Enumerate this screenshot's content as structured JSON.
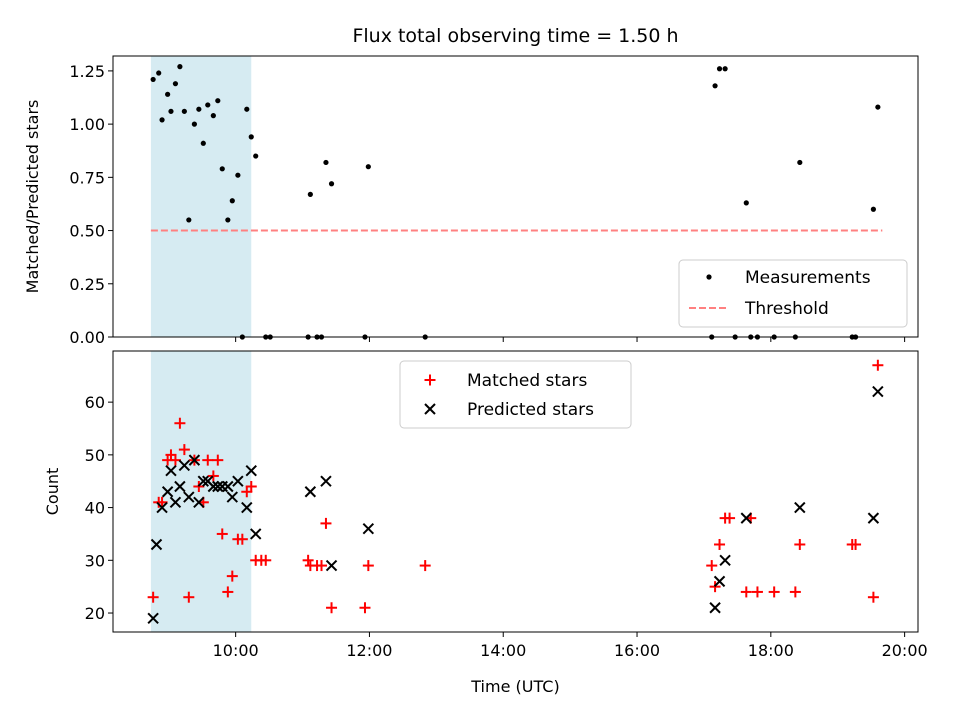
{
  "chart_data": [
    {
      "type": "scatter",
      "title": "Flux total observing time = 1.50 h",
      "xlabel": "",
      "ylabel": "Matched/Predicted stars",
      "ylim": [
        0,
        1.32
      ],
      "yticks": [
        "0.00",
        "0.25",
        "0.50",
        "0.75",
        "1.00",
        "1.25"
      ],
      "shaded_span": {
        "x": [
          "08:44",
          "10:14"
        ],
        "color": "#add8e6"
      },
      "threshold": {
        "name": "Threshold",
        "y": 0.5,
        "x": [
          "08:44",
          "19:40"
        ],
        "color": "#ff8080"
      },
      "series": [
        {
          "name": "Measurements",
          "color": "#000000",
          "points": [
            [
              "08:46",
              1.21
            ],
            [
              "08:51",
              1.24
            ],
            [
              "08:54",
              1.02
            ],
            [
              "08:59",
              1.14
            ],
            [
              "09:02",
              1.06
            ],
            [
              "09:06",
              1.19
            ],
            [
              "09:10",
              1.27
            ],
            [
              "09:14",
              1.06
            ],
            [
              "09:18",
              0.55
            ],
            [
              "09:23",
              1.0
            ],
            [
              "09:27",
              1.07
            ],
            [
              "09:31",
              0.91
            ],
            [
              "09:35",
              1.09
            ],
            [
              "09:40",
              1.04
            ],
            [
              "09:44",
              1.11
            ],
            [
              "09:48",
              0.79
            ],
            [
              "09:53",
              0.55
            ],
            [
              "09:57",
              0.64
            ],
            [
              "10:02",
              0.76
            ],
            [
              "10:06",
              0.0
            ],
            [
              "10:10",
              1.07
            ],
            [
              "10:14",
              0.94
            ],
            [
              "10:18",
              0.85
            ],
            [
              "10:27",
              0.0
            ],
            [
              "10:31",
              0.0
            ],
            [
              "11:05",
              0.0
            ],
            [
              "11:07",
              0.67
            ],
            [
              "11:13",
              0.0
            ],
            [
              "11:17",
              0.0
            ],
            [
              "11:21",
              0.82
            ],
            [
              "11:26",
              0.72
            ],
            [
              "11:56",
              0.0
            ],
            [
              "11:59",
              0.8
            ],
            [
              "12:50",
              0.0
            ],
            [
              "17:07",
              0.0
            ],
            [
              "17:10",
              1.18
            ],
            [
              "17:14",
              1.26
            ],
            [
              "17:19",
              1.26
            ],
            [
              "17:28",
              0.0
            ],
            [
              "17:38",
              0.63
            ],
            [
              "17:42",
              0.0
            ],
            [
              "17:48",
              0.0
            ],
            [
              "18:03",
              0.0
            ],
            [
              "18:22",
              0.0
            ],
            [
              "18:26",
              0.82
            ],
            [
              "19:13",
              0.0
            ],
            [
              "19:16",
              0.0
            ],
            [
              "19:32",
              0.6
            ],
            [
              "19:36",
              1.08
            ]
          ]
        }
      ],
      "legend": {
        "placement": "lower-right",
        "entries": [
          "Measurements",
          "Threshold"
        ]
      }
    },
    {
      "type": "scatter",
      "xlabel": "Time (UTC)",
      "ylabel": "Count",
      "ylim": [
        16.4,
        69.7
      ],
      "yticks": [
        "20",
        "30",
        "40",
        "50",
        "60"
      ],
      "xlim": [
        "08:10",
        "20:12"
      ],
      "xticks": [
        "10:00",
        "12:00",
        "14:00",
        "16:00",
        "18:00",
        "20:00"
      ],
      "shaded_span": {
        "x": [
          "08:44",
          "10:14"
        ],
        "color": "#add8e6"
      },
      "series": [
        {
          "name": "Matched stars",
          "marker": "+",
          "color": "#ff0000",
          "points": [
            [
              "08:46",
              23
            ],
            [
              "08:51",
              41
            ],
            [
              "08:54",
              41
            ],
            [
              "08:59",
              49
            ],
            [
              "09:02",
              50
            ],
            [
              "09:06",
              49
            ],
            [
              "09:10",
              56
            ],
            [
              "09:14",
              51
            ],
            [
              "09:18",
              23
            ],
            [
              "09:23",
              49
            ],
            [
              "09:27",
              44
            ],
            [
              "09:31",
              41
            ],
            [
              "09:35",
              49
            ],
            [
              "09:40",
              46
            ],
            [
              "09:44",
              49
            ],
            [
              "09:48",
              35
            ],
            [
              "09:53",
              24
            ],
            [
              "09:57",
              27
            ],
            [
              "10:02",
              34
            ],
            [
              "10:06",
              34
            ],
            [
              "10:10",
              43
            ],
            [
              "10:14",
              44
            ],
            [
              "10:18",
              30
            ],
            [
              "10:23",
              30
            ],
            [
              "10:27",
              30
            ],
            [
              "11:05",
              30
            ],
            [
              "11:07",
              29
            ],
            [
              "11:13",
              29
            ],
            [
              "11:17",
              29
            ],
            [
              "11:21",
              37
            ],
            [
              "11:26",
              21
            ],
            [
              "11:56",
              21
            ],
            [
              "11:59",
              29
            ],
            [
              "12:50",
              29
            ],
            [
              "17:07",
              29
            ],
            [
              "17:10",
              25
            ],
            [
              "17:14",
              33
            ],
            [
              "17:19",
              38
            ],
            [
              "17:23",
              38
            ],
            [
              "17:38",
              24
            ],
            [
              "17:42",
              38
            ],
            [
              "17:48",
              24
            ],
            [
              "18:03",
              24
            ],
            [
              "18:22",
              24
            ],
            [
              "18:26",
              33
            ],
            [
              "19:13",
              33
            ],
            [
              "19:16",
              33
            ],
            [
              "19:32",
              23
            ],
            [
              "19:36",
              67
            ]
          ]
        },
        {
          "name": "Predicted stars",
          "marker": "x",
          "color": "#000000",
          "points": [
            [
              "08:46",
              19
            ],
            [
              "08:49",
              33
            ],
            [
              "08:54",
              40
            ],
            [
              "08:59",
              43
            ],
            [
              "09:02",
              47
            ],
            [
              "09:06",
              41
            ],
            [
              "09:10",
              44
            ],
            [
              "09:14",
              48
            ],
            [
              "09:18",
              42
            ],
            [
              "09:23",
              49
            ],
            [
              "09:27",
              41
            ],
            [
              "09:31",
              45
            ],
            [
              "09:35",
              45
            ],
            [
              "09:40",
              44
            ],
            [
              "09:44",
              44
            ],
            [
              "09:48",
              44
            ],
            [
              "09:53",
              44
            ],
            [
              "09:57",
              42
            ],
            [
              "10:02",
              45
            ],
            [
              "10:10",
              40
            ],
            [
              "10:14",
              47
            ],
            [
              "10:18",
              35
            ],
            [
              "11:07",
              43
            ],
            [
              "11:21",
              45
            ],
            [
              "11:26",
              29
            ],
            [
              "11:59",
              36
            ],
            [
              "17:10",
              21
            ],
            [
              "17:14",
              26
            ],
            [
              "17:19",
              30
            ],
            [
              "17:38",
              38
            ],
            [
              "18:26",
              40
            ],
            [
              "19:32",
              38
            ],
            [
              "19:36",
              62
            ]
          ]
        }
      ],
      "legend": {
        "placement": "upper-center",
        "entries": [
          "Matched stars",
          "Predicted stars"
        ]
      }
    }
  ]
}
